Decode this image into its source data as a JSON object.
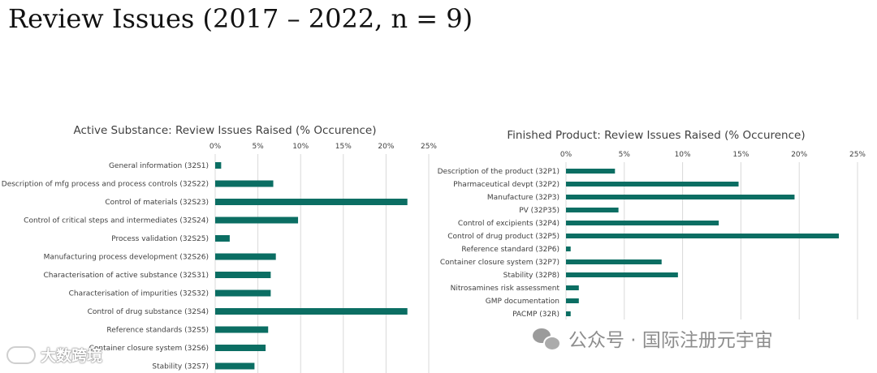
{
  "page": {
    "title": "Review Issues (2017 – 2022, n = 9)"
  },
  "colors": {
    "bar": "#0b6e63",
    "text": "#404040",
    "grid": "#d9d9d9"
  },
  "chart_data": [
    {
      "type": "bar",
      "orientation": "horizontal",
      "title": "Active Substance: Review Issues Raised (% Occurence)",
      "xlim": [
        0,
        25
      ],
      "x_ticks": [
        "0%",
        "5%",
        "10%",
        "15%",
        "20%",
        "25%"
      ],
      "x_axis_position": "top",
      "categories": [
        "General information (32S1)",
        "Description of mfg process and process controls (32S22)",
        "Control of materials  (32S23)",
        "Control of critical steps and intermediates (32S24)",
        "Process validation (32S25)",
        "Manufacturing process development (32S26)",
        "Characterisation of active substance (32S31)",
        "Characterisation of impurities (32S32)",
        "Control of drug substance (32S4)",
        "Reference standards (32S5)",
        "Container closure system (32S6)",
        "Stability (32S7)"
      ],
      "values": [
        0.7,
        6.8,
        22.5,
        9.7,
        1.7,
        7.1,
        6.5,
        6.5,
        22.5,
        6.2,
        5.9,
        4.6
      ],
      "grid": true
    },
    {
      "type": "bar",
      "orientation": "horizontal",
      "title": "Finished Product: Review Issues Raised (% Occurence)",
      "xlim": [
        0,
        25
      ],
      "x_ticks": [
        "0%",
        "5%",
        "10%",
        "15%",
        "20%",
        "25%"
      ],
      "x_axis_position": "top",
      "categories": [
        "Description of the product (32P1)",
        "Pharmaceutical devpt (32P2)",
        "Manufacture (32P3)",
        "PV (32P35)",
        "Control of excipients (32P4)",
        "Control of drug product (32P5)",
        "Reference standard (32P6)",
        "Container closure system (32P7)",
        "Stability (32P8)",
        "Nitrosamines risk assessment",
        "GMP documentation",
        "PACMP (32R)"
      ],
      "values": [
        4.2,
        14.8,
        19.6,
        4.5,
        13.1,
        23.4,
        0.4,
        8.2,
        9.6,
        1.1,
        1.1,
        0.4
      ],
      "grid": true
    }
  ],
  "watermarks": {
    "right_text": "公众号 · 国际注册元宇宙",
    "left_text": "大数跨境"
  }
}
